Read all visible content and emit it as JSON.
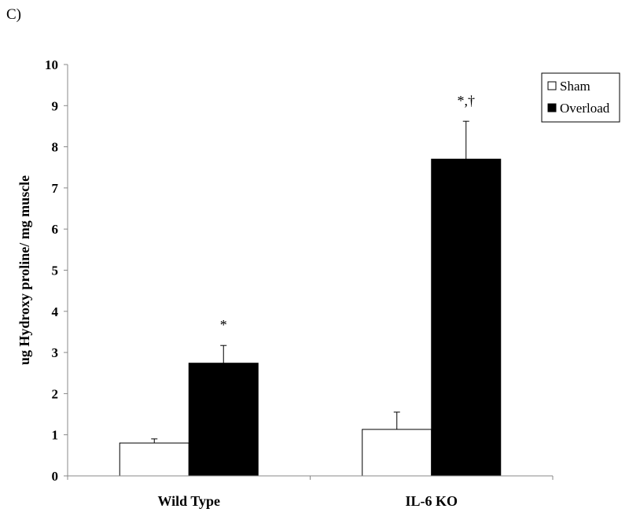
{
  "panel_label": "C)",
  "chart_data": {
    "type": "bar",
    "categories": [
      "Wild Type",
      "IL-6 KO"
    ],
    "series": [
      {
        "name": "Sham",
        "values": [
          0.8,
          1.13
        ],
        "errors": [
          0.1,
          0.42
        ],
        "color": "#ffffff"
      },
      {
        "name": "Overload",
        "values": [
          2.74,
          7.7
        ],
        "errors": [
          0.43,
          0.92
        ],
        "color": "#000000"
      }
    ],
    "annotations": [
      {
        "category": 0,
        "series": 1,
        "text": "*"
      },
      {
        "category": 1,
        "series": 1,
        "text": "*,†"
      }
    ],
    "ylabel": "ug Hydroxy proline/ mg muscle",
    "xlabel": "",
    "ylim": [
      0,
      10
    ],
    "yticks": [
      0,
      1,
      2,
      3,
      4,
      5,
      6,
      7,
      8,
      9,
      10
    ],
    "grid": false,
    "legend": "top-right"
  }
}
